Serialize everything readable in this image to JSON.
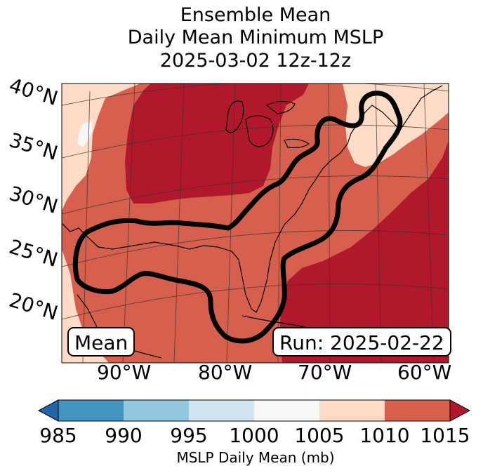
{
  "title": {
    "line1": "Ensemble Mean",
    "line2": "Daily Mean Minimum MSLP",
    "line3": "2025-03-02 12z-12z"
  },
  "map": {
    "lat_labels": [
      "40°N",
      "35°N",
      "30°N",
      "25°N",
      "20°N"
    ],
    "lon_labels": [
      "90°W",
      "80°W",
      "70°W",
      "60°W"
    ],
    "badge_left": "Mean",
    "badge_right": "Run: 2025-02-22",
    "colors": {
      "band_1000_1005": "#f7f7f7",
      "band_1005_1010": "#fddbc7",
      "band_1010_1015": "#d6604d",
      "band_above_1015": "#b2182b",
      "contour": "#000000"
    }
  },
  "colorbar": {
    "label": "MSLP Daily Mean (mb)",
    "ticks": [
      "985",
      "990",
      "995",
      "1000",
      "1005",
      "1010",
      "1015"
    ],
    "colors": [
      "#2166ac",
      "#4393c3",
      "#92c5de",
      "#d1e5f0",
      "#f7f7f7",
      "#fddbc7",
      "#d6604d",
      "#b2182b"
    ]
  }
}
